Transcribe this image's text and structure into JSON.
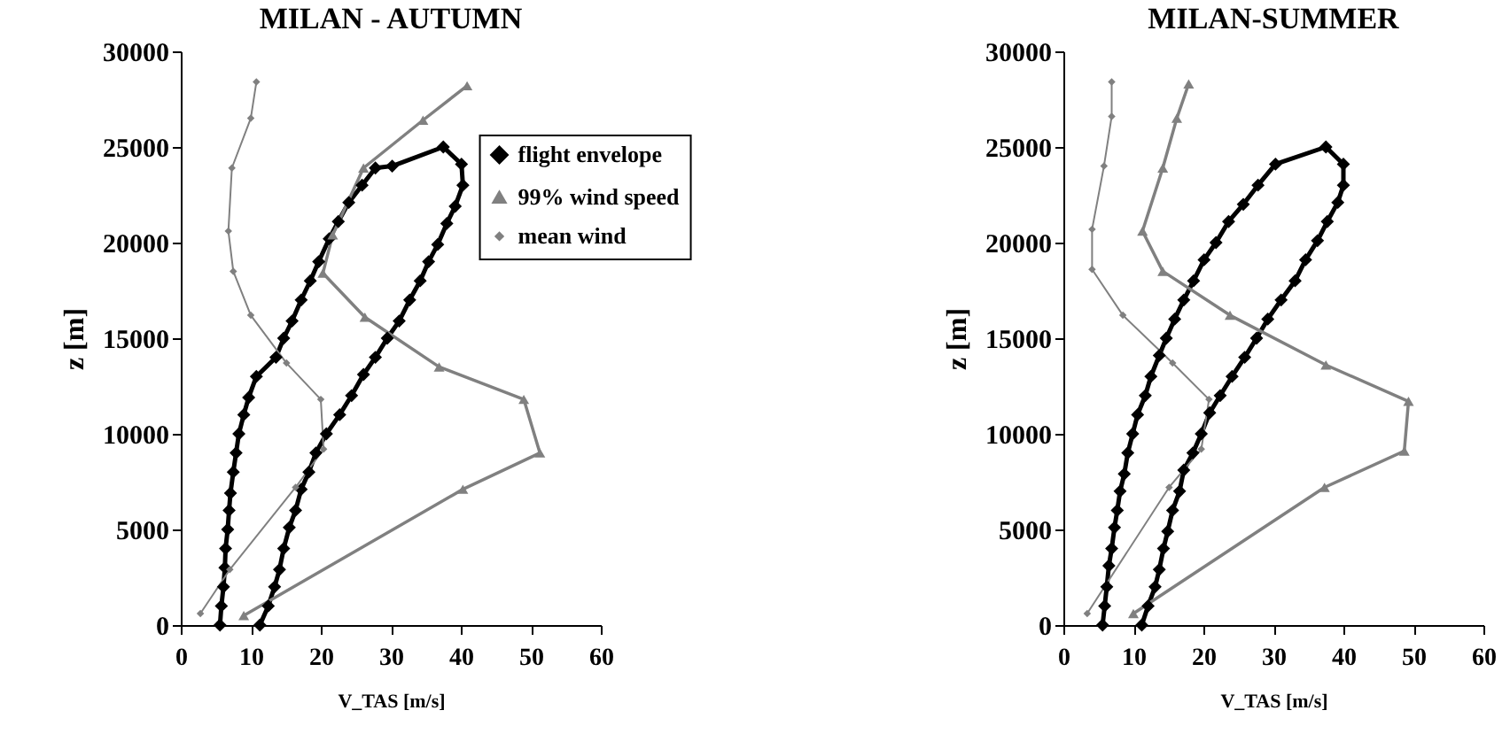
{
  "chart_data": [
    {
      "type": "line",
      "title": "MILAN - AUTUMN",
      "xlabel": "V_TAS [m/s]",
      "ylabel": "z [m]",
      "xlim": [
        0,
        60
      ],
      "xticks": [
        0,
        10,
        20,
        30,
        40,
        50,
        60
      ],
      "ylim": [
        0,
        30000
      ],
      "yticks": [
        0,
        5000,
        10000,
        15000,
        20000,
        25000,
        30000
      ],
      "legend": "top right",
      "series": [
        {
          "name": "flight envelope",
          "color": "#000000",
          "marker": "diamond",
          "x": [
            5.6,
            5.8,
            6.1,
            6.3,
            6.4,
            6.7,
            6.9,
            7.1,
            7.5,
            7.9,
            8.3,
            9.0,
            9.7,
            10.8,
            13.6,
            14.7,
            15.9,
            17.2,
            18.5,
            19.7,
            21.2,
            22.5,
            24.0,
            25.9,
            27.8,
            30.2,
            37.5,
            40.1,
            40.3,
            39.2,
            38.0,
            36.7,
            35.4,
            34.2,
            32.7,
            31.2,
            29.5,
            27.8,
            26.1,
            24.4,
            22.7,
            20.8,
            19.3,
            18.3,
            17.2,
            16.4,
            15.5,
            14.7,
            14.1,
            13.4,
            12.5,
            11.3
          ],
          "values": [
            0,
            1000,
            2000,
            3000,
            4000,
            5000,
            6000,
            6900,
            8000,
            9000,
            10000,
            11000,
            11900,
            13000,
            14000,
            15000,
            15900,
            17000,
            18000,
            19000,
            20200,
            21100,
            22100,
            23000,
            23900,
            24000,
            25000,
            24100,
            23000,
            21900,
            21000,
            19900,
            19000,
            18000,
            17000,
            15900,
            15000,
            14000,
            13100,
            12000,
            11000,
            10000,
            9000,
            8000,
            7100,
            6000,
            5100,
            4000,
            2900,
            2000,
            1000,
            0
          ]
        },
        {
          "name": "99% wind speed",
          "color": "#808080",
          "marker": "triangle",
          "x": [
            9.0,
            40.3,
            51.3,
            49.0,
            36.9,
            26.3,
            20.3,
            21.7,
            26.1,
            34.6,
            40.9
          ],
          "values": [
            500,
            7100,
            9000,
            11800,
            13500,
            16100,
            18400,
            20400,
            23900,
            26400,
            28200
          ]
        },
        {
          "name": "mean wind",
          "color": "#808080",
          "marker": "diamond",
          "x": [
            2.8,
            7.0,
            16.4,
            20.4,
            20.0,
            15.1,
            10.0,
            7.5,
            6.8,
            7.3,
            10.0,
            10.8
          ],
          "values": [
            600,
            2900,
            7200,
            9200,
            11800,
            13700,
            16200,
            18500,
            20600,
            23900,
            26500,
            28400
          ]
        }
      ]
    },
    {
      "type": "line",
      "title": "MILAN-SUMMER",
      "xlabel": "V_TAS [m/s]",
      "ylabel": "z [m]",
      "xlim": [
        0,
        60
      ],
      "xticks": [
        0,
        10,
        20,
        30,
        40,
        50,
        60
      ],
      "ylim": [
        0,
        30000
      ],
      "yticks": [
        0,
        5000,
        10000,
        15000,
        20000,
        25000,
        30000
      ],
      "series": [
        {
          "color": "#000000",
          "marker": "diamond",
          "x": [
            5.6,
            5.9,
            6.2,
            6.5,
            6.9,
            7.3,
            7.7,
            8.1,
            8.7,
            9.2,
            9.9,
            10.6,
            11.7,
            12.5,
            13.7,
            14.7,
            15.9,
            17.2,
            18.6,
            20.1,
            21.8,
            23.6,
            25.7,
            27.8,
            30.3,
            37.5,
            40.0,
            40.0,
            39.2,
            37.7,
            36.3,
            34.6,
            33.1,
            31.1,
            29.2,
            27.6,
            25.9,
            24.1,
            22.4,
            20.9,
            19.7,
            18.5,
            17.2,
            16.6,
            15.6,
            14.9,
            14.3,
            13.7,
            13.1,
            12.1,
            11.2
          ],
          "values": [
            0,
            1000,
            2000,
            3100,
            4000,
            5100,
            6000,
            7000,
            7900,
            9000,
            10000,
            11000,
            12000,
            13000,
            14100,
            15000,
            16000,
            17000,
            18000,
            19100,
            20000,
            21100,
            22000,
            23000,
            24100,
            25000,
            24100,
            23000,
            22100,
            21100,
            20100,
            19100,
            18000,
            17000,
            16000,
            15000,
            14000,
            13000,
            12000,
            11100,
            10000,
            9000,
            8100,
            7000,
            6000,
            4900,
            4000,
            2900,
            2000,
            1000,
            0
          ]
        },
        {
          "color": "#808080",
          "marker": "triangle",
          "x": [
            10.0,
            37.3,
            48.7,
            49.3,
            37.5,
            23.8,
            14.2,
            11.3,
            14.2,
            16.2,
            17.9
          ],
          "values": [
            600,
            7200,
            9100,
            11700,
            13600,
            16200,
            18500,
            20600,
            23900,
            26500,
            28300
          ]
        },
        {
          "color": "#808080",
          "marker": "diamond",
          "x": [
            3.4,
            15.1,
            19.7,
            20.8,
            15.6,
            8.5,
            4.1,
            4.1,
            5.8,
            6.9,
            6.9
          ],
          "values": [
            600,
            7200,
            9200,
            11800,
            13700,
            16200,
            18600,
            20700,
            24000,
            26600,
            28400
          ]
        }
      ]
    }
  ]
}
